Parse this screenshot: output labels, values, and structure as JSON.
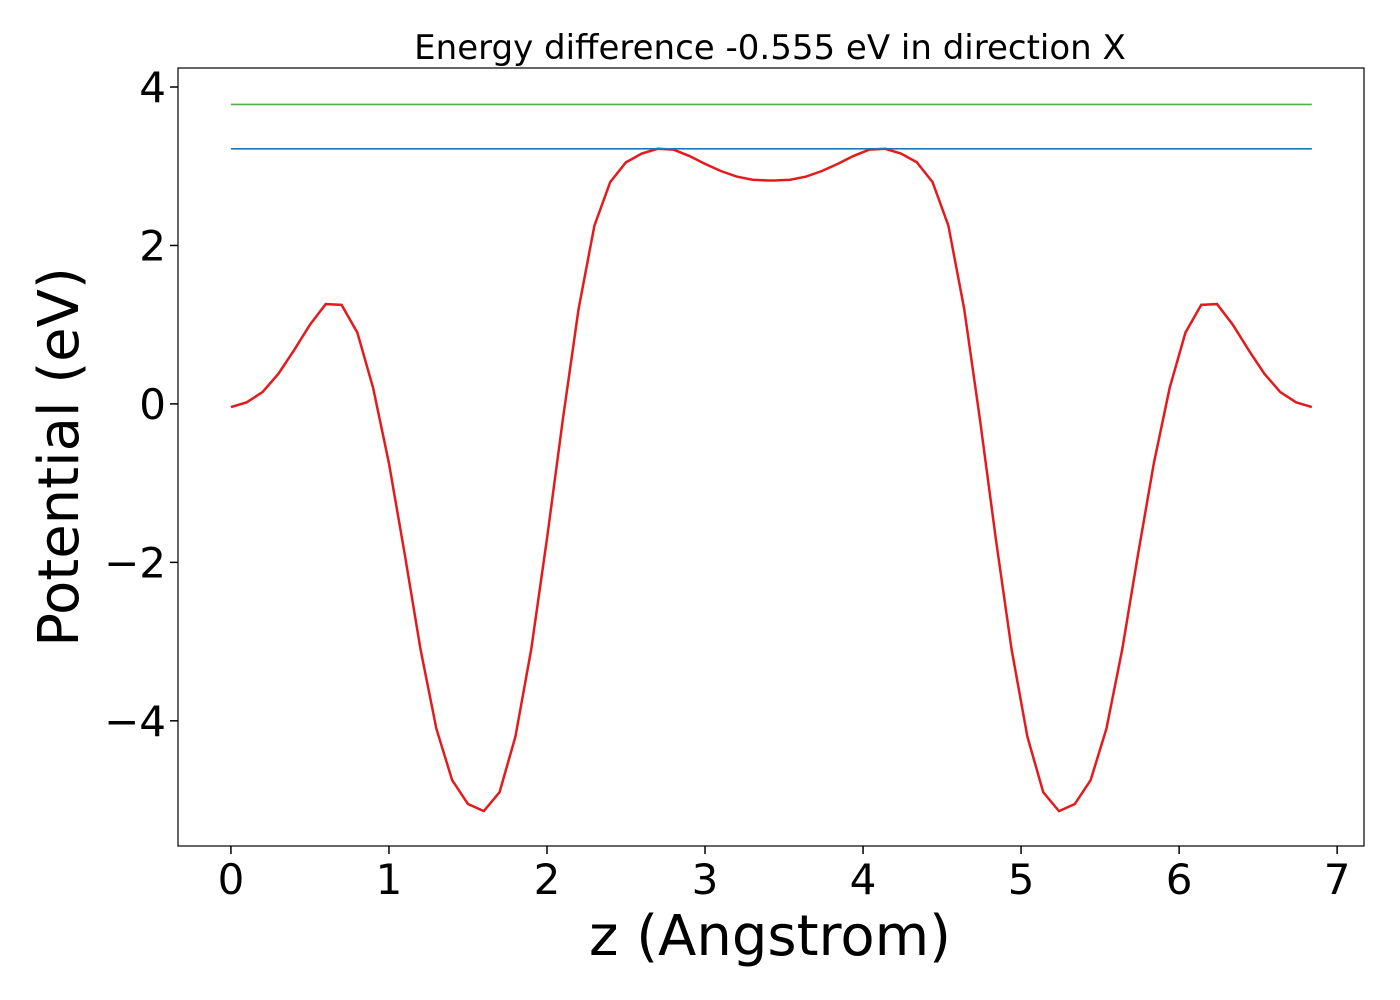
{
  "chart_data": {
    "type": "line",
    "title": "Energy difference -0.555 eV in direction X",
    "xlabel": "z (Angstrom)",
    "ylabel": "Potential (eV)",
    "xlim": [
      -0.335,
      7.17
    ],
    "ylim": [
      -5.58,
      4.24
    ],
    "xticks": [
      0,
      1,
      2,
      3,
      4,
      5,
      6,
      7
    ],
    "yticks": [
      {
        "value": -4,
        "label": "−4"
      },
      {
        "value": -2,
        "label": "−2"
      },
      0,
      2,
      4
    ],
    "grid": false,
    "series": [
      {
        "color": "#e41a1c",
        "x": [
          0,
          0.1,
          0.2,
          0.3,
          0.4,
          0.5,
          0.6,
          0.7,
          0.8,
          0.9,
          1.0,
          1.1,
          1.2,
          1.3,
          1.4,
          1.5,
          1.6,
          1.7,
          1.8,
          1.9,
          2.0,
          2.1,
          2.2,
          2.3,
          2.4,
          2.5,
          2.6,
          2.7,
          2.8,
          2.9,
          3.0,
          3.1,
          3.2,
          3.3,
          3.4,
          3.44,
          3.54,
          3.64,
          3.74,
          3.84,
          3.94,
          4.04,
          4.14,
          4.24,
          4.34,
          4.44,
          4.54,
          4.64,
          4.74,
          4.84,
          4.94,
          5.04,
          5.14,
          5.24,
          5.34,
          5.44,
          5.54,
          5.64,
          5.74,
          5.84,
          5.94,
          6.04,
          6.14,
          6.24,
          6.34,
          6.44,
          6.54,
          6.64,
          6.74,
          6.84
        ],
        "values": [
          -0.04,
          0.02,
          0.15,
          0.38,
          0.68,
          1.0,
          1.26,
          1.25,
          0.9,
          0.2,
          -0.75,
          -1.9,
          -3.1,
          -4.1,
          -4.75,
          -5.05,
          -5.14,
          -4.9,
          -4.2,
          -3.1,
          -1.7,
          -0.2,
          1.2,
          2.25,
          2.8,
          3.05,
          3.16,
          3.22,
          3.21,
          3.13,
          3.03,
          2.94,
          2.87,
          2.83,
          2.82,
          2.82,
          2.83,
          2.87,
          2.94,
          3.03,
          3.13,
          3.21,
          3.22,
          3.16,
          3.05,
          2.8,
          2.25,
          1.2,
          -0.2,
          -1.7,
          -3.1,
          -4.2,
          -4.9,
          -5.14,
          -5.05,
          -4.75,
          -4.1,
          -3.1,
          -1.9,
          -0.75,
          0.2,
          0.9,
          1.25,
          1.26,
          1.0,
          0.68,
          0.38,
          0.15,
          0.02,
          -0.04
        ]
      },
      {
        "color": "#1f77b4",
        "x": [
          0,
          6.84
        ],
        "values": [
          3.22,
          3.22
        ]
      },
      {
        "color": "#4daf4a",
        "x": [
          0,
          6.84
        ],
        "values": [
          3.78,
          3.78
        ]
      }
    ]
  }
}
